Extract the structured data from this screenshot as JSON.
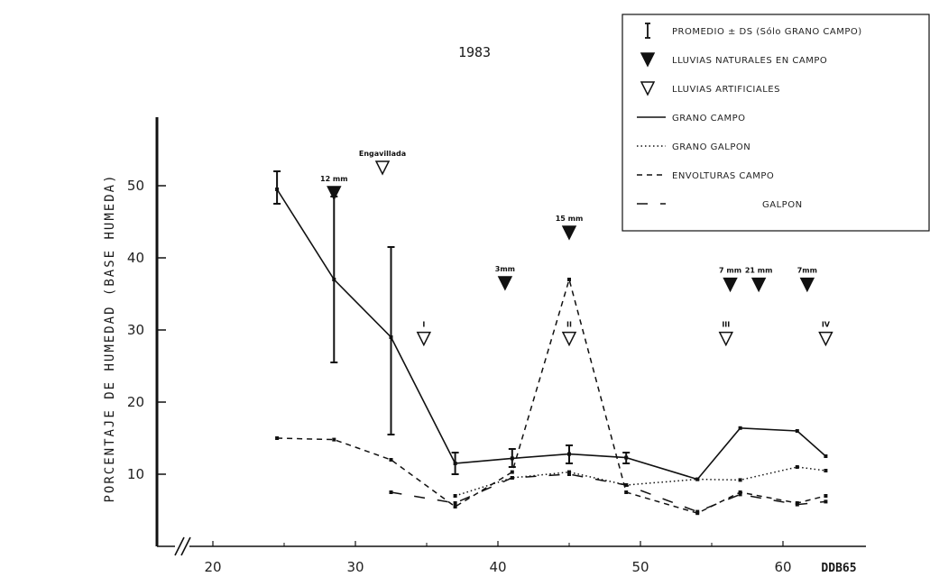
{
  "chart_data": {
    "type": "line",
    "title": "1983",
    "xlabel": "DDB65",
    "ylabel": "PORCENTAJE DE HUMEDAD (BASE HUMEDA)",
    "xlim": [
      18,
      63
    ],
    "ylim": [
      0,
      57
    ],
    "x_ticks": [
      "20",
      "30",
      "40",
      "50",
      "60"
    ],
    "y_ticks": [
      "10",
      "20",
      "30",
      "40",
      "50"
    ],
    "legend_position": "top-right",
    "legend": [
      {
        "symbol": "errorbar",
        "label": "PROMEDIO ± DS (Sólo GRANO CAMPO)"
      },
      {
        "symbol": "filled-triangle",
        "label": "LLUVIAS NATURALES EN CAMPO"
      },
      {
        "symbol": "open-triangle",
        "label": "LLUVIAS ARTIFICIALES"
      },
      {
        "symbol": "solid",
        "label": "GRANO CAMPO"
      },
      {
        "symbol": "dotted",
        "label": "GRANO GALPON"
      },
      {
        "symbol": "short-dash",
        "label": "ENVOLTURAS CAMPO"
      },
      {
        "symbol": "long-dash",
        "label": "GALPON"
      }
    ],
    "series": [
      {
        "name": "GRANO CAMPO",
        "style": "solid",
        "x": [
          24.5,
          28.5,
          32.5,
          37,
          41,
          45,
          49,
          54,
          57,
          61,
          63
        ],
        "y": [
          49.5,
          37,
          29,
          11.5,
          12.2,
          12.8,
          12.3,
          9.3,
          16.4,
          16,
          12.5
        ]
      },
      {
        "name": "GRANO GALPON",
        "style": "dotted",
        "x": [
          37,
          41,
          45,
          49,
          54,
          57,
          61,
          63
        ],
        "y": [
          7,
          9.5,
          10.3,
          8.5,
          9.3,
          9.2,
          11,
          10.5
        ]
      },
      {
        "name": "ENVOLTURAS CAMPO",
        "style": "short-dash",
        "x": [
          24.5,
          28.5,
          32.5,
          37,
          41,
          45,
          49,
          54,
          57,
          61,
          63
        ],
        "y": [
          15,
          14.8,
          12,
          5.5,
          10.3,
          37,
          7.5,
          4.6,
          7.5,
          6,
          7
        ]
      },
      {
        "name": "GALPON",
        "style": "long-dash",
        "x": [
          32.5,
          37,
          41,
          45,
          49,
          54,
          57,
          61,
          63
        ],
        "y": [
          7.5,
          6,
          9.5,
          10,
          8.5,
          4.8,
          7.2,
          5.8,
          6.2
        ]
      }
    ],
    "error_bars": [
      {
        "x": 24.5,
        "y": 49.5,
        "low": 47.5,
        "high": 52
      },
      {
        "x": 28.5,
        "y": 37,
        "low": 25.5,
        "high": 48.5
      },
      {
        "x": 32.5,
        "y": 29,
        "low": 15.5,
        "high": 41.5
      },
      {
        "x": 37,
        "y": 11.5,
        "low": 10,
        "high": 13
      },
      {
        "x": 41,
        "y": 12.2,
        "low": 11,
        "high": 13.5
      },
      {
        "x": 45,
        "y": 12.8,
        "low": 11.5,
        "high": 14
      },
      {
        "x": 49,
        "y": 12.3,
        "low": 11.5,
        "high": 13
      }
    ],
    "natural_rains": [
      {
        "x": 28.5,
        "y": 49,
        "label": "12 mm"
      },
      {
        "x": 40.5,
        "y": 36.5,
        "label": "3mm"
      },
      {
        "x": 45,
        "y": 43.5,
        "label": "15 mm"
      },
      {
        "x": 56.3,
        "y": 36.3,
        "label": "7 mm"
      },
      {
        "x": 58.3,
        "y": 36.3,
        "label": "21 mm"
      },
      {
        "x": 61.7,
        "y": 36.3,
        "label": "7mm"
      }
    ],
    "artificial_rains": [
      {
        "x": 31.9,
        "y": 52.5,
        "label": "Engavillada"
      },
      {
        "x": 34.8,
        "y": 28.8,
        "label": "I"
      },
      {
        "x": 45,
        "y": 28.8,
        "label": "II"
      },
      {
        "x": 56,
        "y": 28.8,
        "label": "III"
      },
      {
        "x": 63,
        "y": 28.8,
        "label": "IV"
      }
    ]
  }
}
